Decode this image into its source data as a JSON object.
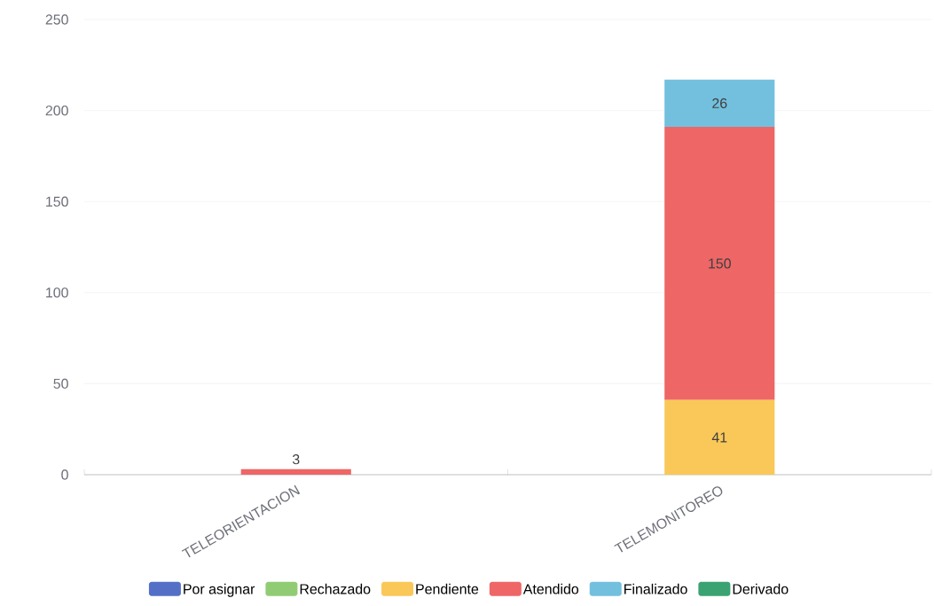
{
  "chart_data": {
    "type": "bar",
    "stacked": true,
    "categories": [
      "TELEORIENTACION",
      "TELEMONITOREO"
    ],
    "series": [
      {
        "name": "Por asignar",
        "color": "#5470c6",
        "values": [
          null,
          null
        ]
      },
      {
        "name": "Rechazado",
        "color": "#91cc75",
        "values": [
          null,
          null
        ]
      },
      {
        "name": "Pendiente",
        "color": "#fac858",
        "values": [
          null,
          41
        ]
      },
      {
        "name": "Atendido",
        "color": "#ee6666",
        "values": [
          3,
          150
        ]
      },
      {
        "name": "Finalizado",
        "color": "#73c0de",
        "values": [
          null,
          26
        ]
      },
      {
        "name": "Derivado",
        "color": "#3ba272",
        "values": [
          null,
          null
        ]
      }
    ],
    "ylim": [
      0,
      250
    ],
    "yticks": [
      0,
      50,
      100,
      150,
      200,
      250
    ],
    "grid": "y",
    "legend": "bottom",
    "data_labels": true
  }
}
